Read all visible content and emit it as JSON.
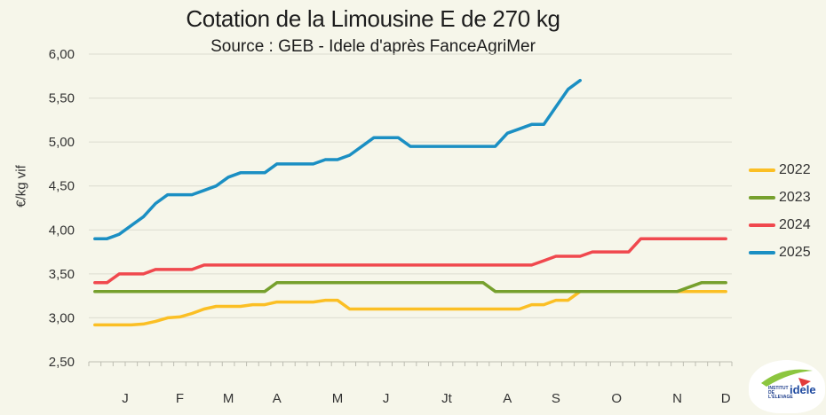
{
  "chart_data": {
    "type": "line",
    "title": "Cotation de la Limousine E de 270 kg",
    "subtitle": "Source : GEB - Idele d'après FanceAgriMer",
    "xlabel": "",
    "ylabel": "€/kg vif",
    "ylim": [
      2.5,
      6.0
    ],
    "yticks": [
      "2,50",
      "3,00",
      "3,50",
      "4,00",
      "4,50",
      "5,00",
      "5,50",
      "6,00"
    ],
    "ytick_values": [
      2.5,
      3.0,
      3.5,
      4.0,
      4.5,
      5.0,
      5.5,
      6.0
    ],
    "weeks": 53,
    "month_labels": [
      {
        "label": "J",
        "week": 3
      },
      {
        "label": "F",
        "week": 7.5
      },
      {
        "label": "M",
        "week": 11.5
      },
      {
        "label": "A",
        "week": 15.5
      },
      {
        "label": "M",
        "week": 20.5
      },
      {
        "label": "J",
        "week": 24.5
      },
      {
        "label": "Jt",
        "week": 29.5
      },
      {
        "label": "A",
        "week": 34.5
      },
      {
        "label": "S",
        "week": 38.5
      },
      {
        "label": "O",
        "week": 43.5
      },
      {
        "label": "N",
        "week": 48.5
      },
      {
        "label": "D",
        "week": 52.5
      }
    ],
    "legend_position": "right",
    "series": [
      {
        "name": "2022",
        "color": "#fbbf24",
        "values": [
          2.92,
          2.92,
          2.92,
          2.92,
          2.93,
          2.96,
          3.0,
          3.01,
          3.05,
          3.1,
          3.13,
          3.13,
          3.13,
          3.15,
          3.15,
          3.18,
          3.18,
          3.18,
          3.18,
          3.2,
          3.2,
          3.1,
          3.1,
          3.1,
          3.1,
          3.1,
          3.1,
          3.1,
          3.1,
          3.1,
          3.1,
          3.1,
          3.1,
          3.1,
          3.1,
          3.1,
          3.15,
          3.15,
          3.2,
          3.2,
          3.3,
          3.3,
          3.3,
          3.3,
          3.3,
          3.3,
          3.3,
          3.3,
          3.3,
          3.3,
          3.3,
          3.3,
          3.3
        ]
      },
      {
        "name": "2023",
        "color": "#76a02d",
        "values": [
          3.3,
          3.3,
          3.3,
          3.3,
          3.3,
          3.3,
          3.3,
          3.3,
          3.3,
          3.3,
          3.3,
          3.3,
          3.3,
          3.3,
          3.3,
          3.4,
          3.4,
          3.4,
          3.4,
          3.4,
          3.4,
          3.4,
          3.4,
          3.4,
          3.4,
          3.4,
          3.4,
          3.4,
          3.4,
          3.4,
          3.4,
          3.4,
          3.4,
          3.3,
          3.3,
          3.3,
          3.3,
          3.3,
          3.3,
          3.3,
          3.3,
          3.3,
          3.3,
          3.3,
          3.3,
          3.3,
          3.3,
          3.3,
          3.3,
          3.35,
          3.4,
          3.4,
          3.4
        ]
      },
      {
        "name": "2024",
        "color": "#f0484e",
        "values": [
          3.4,
          3.4,
          3.5,
          3.5,
          3.5,
          3.55,
          3.55,
          3.55,
          3.55,
          3.6,
          3.6,
          3.6,
          3.6,
          3.6,
          3.6,
          3.6,
          3.6,
          3.6,
          3.6,
          3.6,
          3.6,
          3.6,
          3.6,
          3.6,
          3.6,
          3.6,
          3.6,
          3.6,
          3.6,
          3.6,
          3.6,
          3.6,
          3.6,
          3.6,
          3.6,
          3.6,
          3.6,
          3.65,
          3.7,
          3.7,
          3.7,
          3.75,
          3.75,
          3.75,
          3.75,
          3.9,
          3.9,
          3.9,
          3.9,
          3.9,
          3.9,
          3.9,
          3.9
        ]
      },
      {
        "name": "2025",
        "color": "#1b8fc3",
        "values": [
          3.9,
          3.9,
          3.95,
          4.05,
          4.15,
          4.3,
          4.4,
          4.4,
          4.4,
          4.45,
          4.5,
          4.6,
          4.65,
          4.65,
          4.65,
          4.75,
          4.75,
          4.75,
          4.75,
          4.8,
          4.8,
          4.85,
          4.95,
          5.05,
          5.05,
          5.05,
          4.95,
          4.95,
          4.95,
          4.95,
          4.95,
          4.95,
          4.95,
          4.95,
          5.1,
          5.15,
          5.2,
          5.2,
          5.4,
          5.6,
          5.7
        ]
      }
    ]
  },
  "logo": {
    "small_text": "INSTITUT DE L'ÉLEVAGE",
    "brand": "idele"
  }
}
